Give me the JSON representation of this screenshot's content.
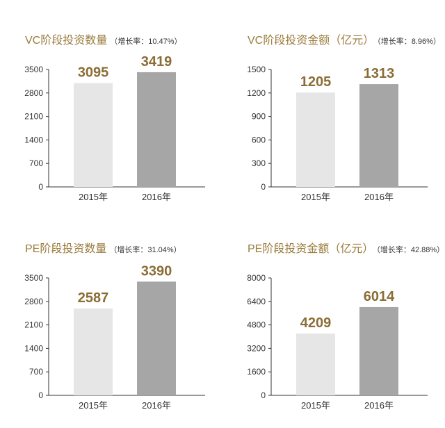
{
  "colors": {
    "title": "#9a7b3c",
    "label": "#8b6d35",
    "bar_2015": "#e6e6e6",
    "bar_2016": "#a6a6a6",
    "axis": "#333333"
  },
  "chart_data": [
    {
      "type": "bar",
      "title": "VC阶段投资数量",
      "subtitle": "（增长率：10.47%）",
      "categories": [
        "2015年",
        "2016年"
      ],
      "values": [
        3095,
        3419
      ],
      "data_labels": [
        "3095",
        "3419"
      ],
      "yticks": [
        "0",
        "700",
        "1400",
        "2100",
        "2800",
        "3500"
      ],
      "ylim": [
        0,
        3500
      ],
      "grid": false,
      "xlabel": "",
      "ylabel": ""
    },
    {
      "type": "bar",
      "title": "VC阶段投资金额（亿元）",
      "subtitle": "（增长率：8.96%）",
      "categories": [
        "2015年",
        "2016年"
      ],
      "values": [
        1205,
        1313
      ],
      "data_labels": [
        "1205",
        "1313"
      ],
      "yticks": [
        "0",
        "300",
        "600",
        "900",
        "1200",
        "1500"
      ],
      "ylim": [
        0,
        1500
      ],
      "grid": false,
      "xlabel": "",
      "ylabel": ""
    },
    {
      "type": "bar",
      "title": "PE阶段投资数量",
      "subtitle": "（增长率：31.04%）",
      "categories": [
        "2015年",
        "2016年"
      ],
      "values": [
        2587,
        3390
      ],
      "data_labels": [
        "2587",
        "3390"
      ],
      "yticks": [
        "0",
        "700",
        "1400",
        "2100",
        "2800",
        "3500"
      ],
      "ylim": [
        0,
        3500
      ],
      "grid": false,
      "xlabel": "",
      "ylabel": ""
    },
    {
      "type": "bar",
      "title": "PE阶段投资金额（亿元）",
      "subtitle": "（增长率：42.88%）",
      "categories": [
        "2015年",
        "2016年"
      ],
      "values": [
        4209,
        6014
      ],
      "data_labels": [
        "4209",
        "6014"
      ],
      "yticks": [
        "0",
        "1600",
        "3200",
        "4800",
        "6400",
        "8000"
      ],
      "ylim": [
        0,
        8000
      ],
      "grid": false,
      "xlabel": "",
      "ylabel": ""
    }
  ]
}
